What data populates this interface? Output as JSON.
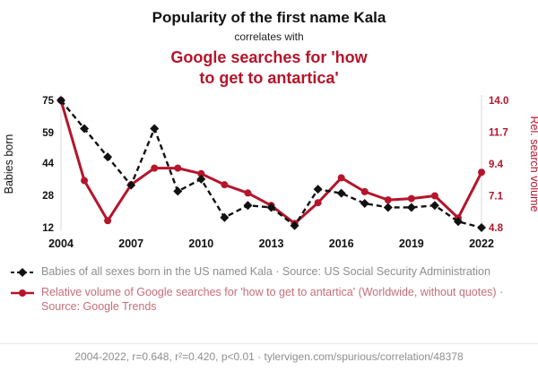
{
  "title": "Popularity of the first name Kala",
  "subtitle": "correlates with",
  "red_title": "Google searches for 'how\nto get to antartica'",
  "colors": {
    "accent_red": "#b5152b",
    "series_black": "#111111",
    "muted_gray": "#8e8e8e",
    "legend_red": "#c76d79",
    "axis_line": "#d9d9d9"
  },
  "chart_data": {
    "type": "line",
    "x": [
      2004,
      2005,
      2006,
      2007,
      2008,
      2009,
      2010,
      2011,
      2012,
      2013,
      2014,
      2015,
      2016,
      2017,
      2018,
      2019,
      2020,
      2021,
      2022
    ],
    "x_ticks": [
      2004,
      2007,
      2010,
      2013,
      2016,
      2019,
      2022
    ],
    "series": [
      {
        "name": "Babies of all sexes born in the US named Kala",
        "axis": "left",
        "style": "dashed-diamond",
        "color": "#111111",
        "values": [
          75,
          61,
          47,
          33,
          61,
          30,
          36,
          17,
          23,
          22,
          13,
          31,
          29,
          24,
          22,
          22,
          23,
          15,
          12
        ]
      },
      {
        "name": "Relative volume of Google searches for 'how to get to antartica'",
        "axis": "right",
        "style": "solid-circle",
        "color": "#b5152b",
        "values": [
          14.0,
          8.2,
          5.3,
          7.9,
          9.1,
          9.1,
          8.7,
          7.9,
          7.3,
          6.4,
          5.1,
          6.6,
          8.4,
          7.4,
          6.8,
          6.9,
          7.1,
          5.5,
          8.8
        ]
      }
    ],
    "left_axis": {
      "label": "Babies born",
      "ticks": [
        75,
        59,
        44,
        28,
        12
      ],
      "range": [
        12,
        75
      ]
    },
    "right_axis": {
      "label": "Rel. search volume",
      "ticks": [
        14.0,
        11.7,
        9.4,
        7.1,
        4.8
      ],
      "range": [
        4.8,
        14.0
      ]
    },
    "grid": false,
    "legend_position": "bottom"
  },
  "legend": [
    {
      "marker": "dashed-diamond",
      "text": "Babies of all sexes born in the US named Kala · Source: US Social Security Administration"
    },
    {
      "marker": "solid-circle",
      "text": "Relative volume of Google searches for 'how to get to antartica' (Worldwide, without quotes) · Source: Google Trends"
    }
  ],
  "footer": {
    "text": "2004-2022, r=0.648, r²=0.420, p<0.01 · tylervigen.com/spurious/correlation/48378"
  }
}
